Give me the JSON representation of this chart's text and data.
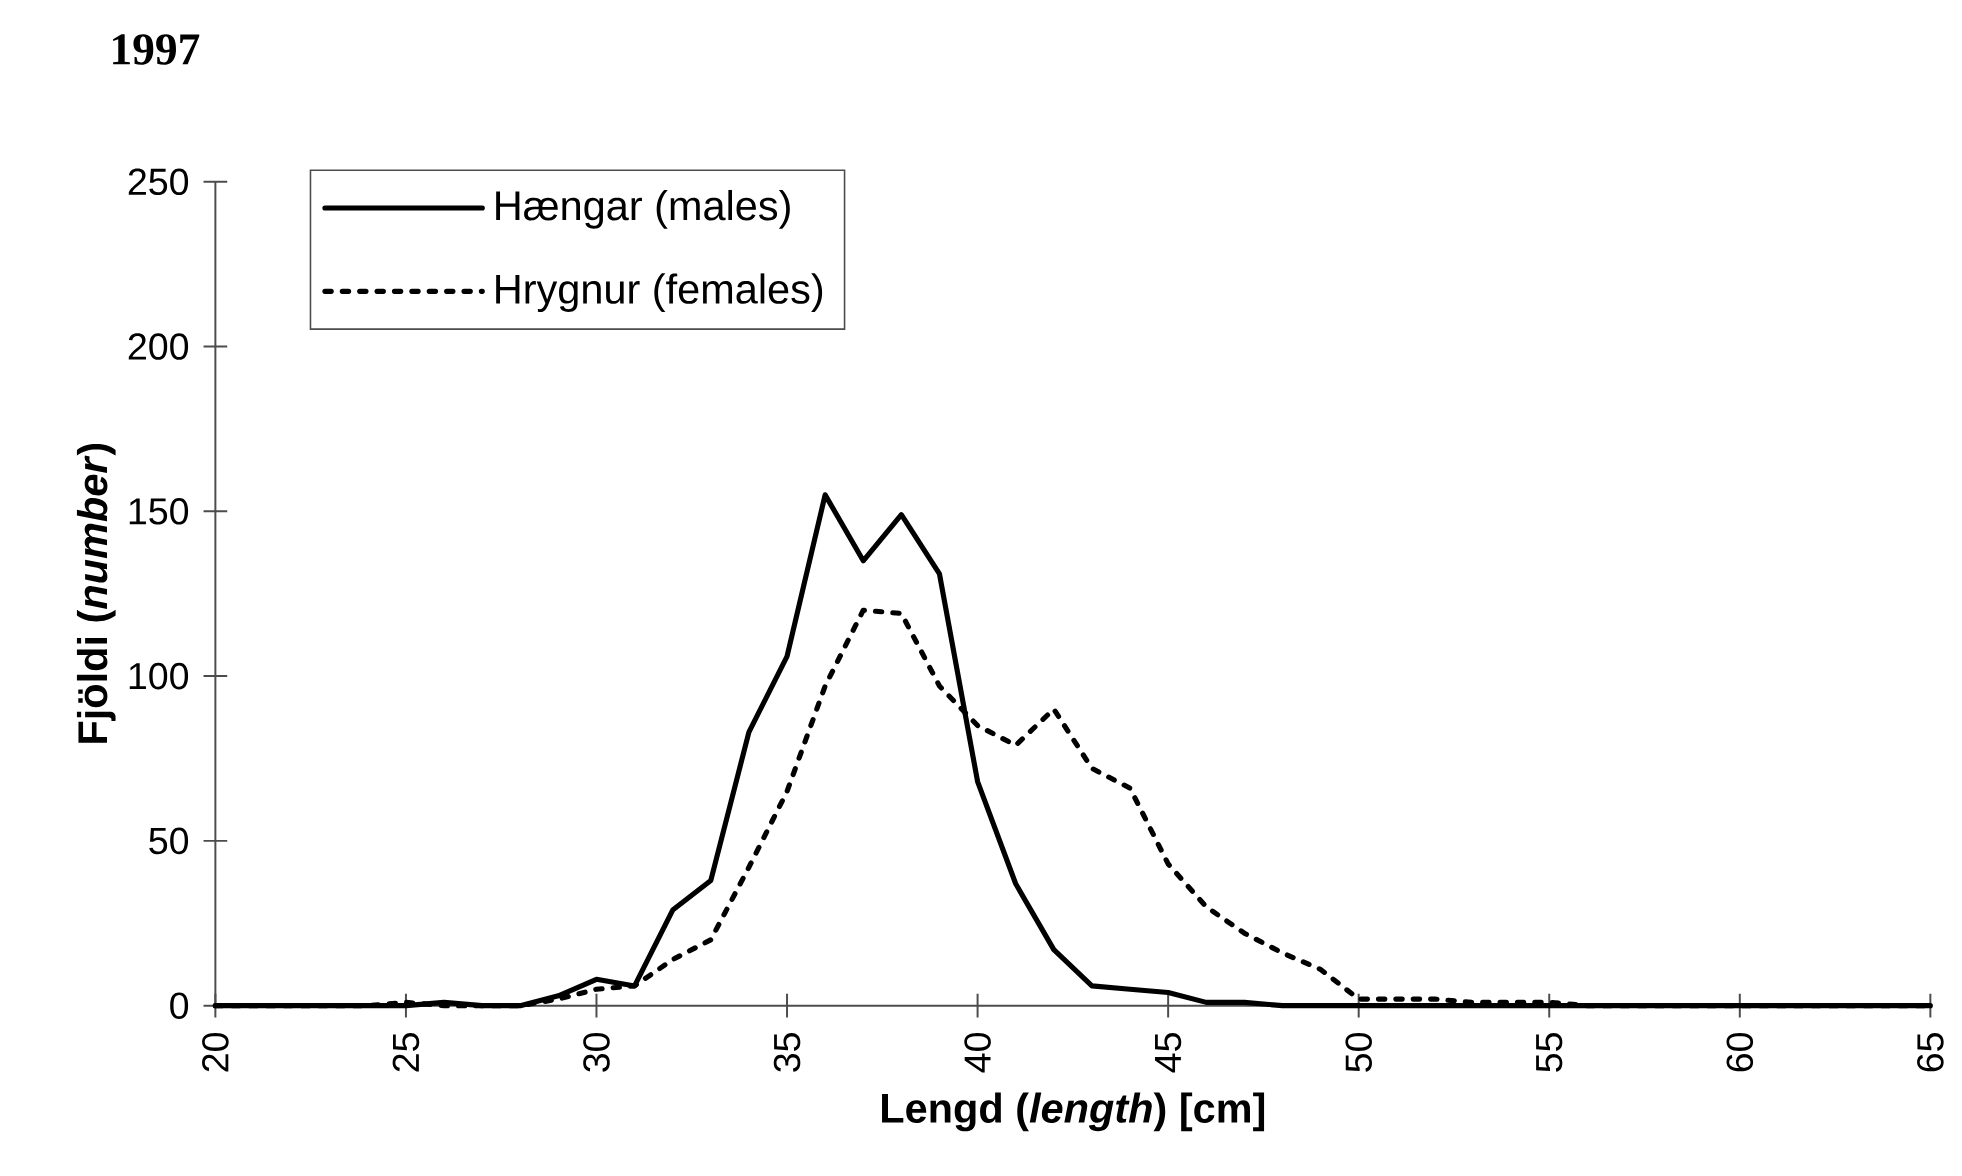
{
  "chart_data": {
    "type": "line",
    "title": "1997",
    "xlabel": "Lengd (*length*) [cm]",
    "ylabel": "Fjöldi (*number*)",
    "x": [
      20,
      21,
      22,
      23,
      24,
      25,
      26,
      27,
      28,
      29,
      30,
      31,
      32,
      33,
      34,
      35,
      36,
      37,
      38,
      39,
      40,
      41,
      42,
      43,
      44,
      45,
      46,
      47,
      48,
      49,
      50,
      51,
      52,
      53,
      54,
      55,
      56,
      57,
      58,
      59,
      60,
      61,
      62,
      63,
      64,
      65
    ],
    "series": [
      {
        "name": "Hængar (males)",
        "color": "#000000",
        "line_style": "solid",
        "values": [
          0,
          0,
          0,
          0,
          0,
          0,
          1,
          0,
          0,
          3,
          8,
          6,
          29,
          38,
          83,
          106,
          155,
          135,
          149,
          131,
          68,
          37,
          17,
          6,
          5,
          4,
          1,
          1,
          0,
          0,
          0,
          0,
          0,
          0,
          0,
          0,
          0,
          0,
          0,
          0,
          0,
          0,
          0,
          0,
          0,
          0
        ]
      },
      {
        "name": "Hrygnur (females)",
        "color": "#000000",
        "line_style": "dotted",
        "values": [
          0,
          0,
          0,
          0,
          0,
          1,
          0,
          0,
          0,
          2,
          5,
          6,
          14,
          20,
          42,
          65,
          97,
          120,
          119,
          97,
          85,
          79,
          90,
          72,
          66,
          43,
          30,
          22,
          16,
          11,
          2,
          2,
          2,
          1,
          1,
          1,
          0,
          0,
          0,
          0,
          0,
          0,
          0,
          0,
          0,
          0
        ]
      }
    ],
    "xlim": [
      20,
      65
    ],
    "xticks": [
      20,
      25,
      30,
      35,
      40,
      45,
      50,
      55,
      60,
      65
    ],
    "ylim": [
      0,
      250
    ],
    "yticks": [
      0,
      50,
      100,
      150,
      200,
      250
    ],
    "grid": false,
    "legend": "top left",
    "marker": "none"
  }
}
